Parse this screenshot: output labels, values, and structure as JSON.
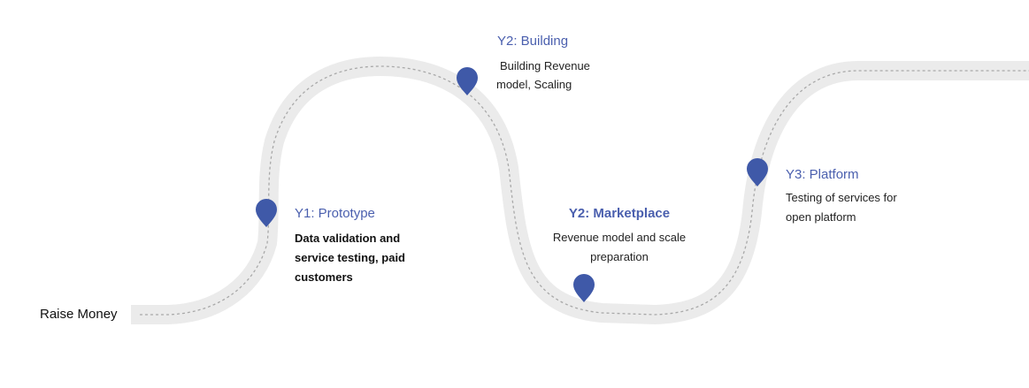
{
  "start_label": "Raise Money",
  "colors": {
    "road": "#ebebeb",
    "dash": "#a9a9a9",
    "pin": "#3f59a8",
    "title": "#4a5fae"
  },
  "milestones": [
    {
      "title": "Y1: Prototype",
      "lines": [
        "Data validation and",
        "service testing, paid",
        "customers"
      ],
      "pin_icon": "map-pin-icon"
    },
    {
      "title": "Y2: Building",
      "lines": [
        "Building Revenue",
        "model, Scaling"
      ],
      "pin_icon": "map-pin-icon"
    },
    {
      "title": "Y2: Marketplace",
      "lines": [
        "Revenue model and scale",
        "preparation"
      ],
      "pin_icon": "map-pin-icon"
    },
    {
      "title": "Y3: Platform",
      "lines": [
        "Testing of services for",
        "open platform"
      ],
      "pin_icon": "map-pin-icon"
    }
  ]
}
